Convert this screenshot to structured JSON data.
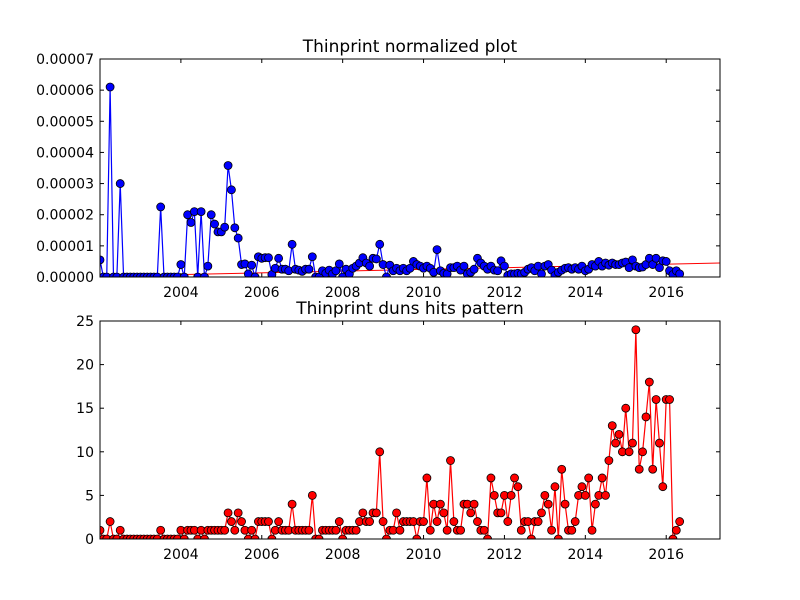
{
  "chart_data": [
    {
      "type": "line",
      "title": "Thinprint normalized plot",
      "xlabel": "",
      "ylabel": "",
      "xlim": [
        2002.0,
        2017.33
      ],
      "ylim": [
        0,
        7e-05
      ],
      "x_ticks": [
        2004,
        2006,
        2008,
        2010,
        2012,
        2014,
        2016
      ],
      "y_ticks": [
        0,
        1e-05,
        2e-05,
        3e-05,
        4e-05,
        5e-05,
        6e-05,
        7e-05
      ],
      "y_tick_labels": [
        "0.00000",
        "0.00001",
        "0.00002",
        "0.00003",
        "0.00004",
        "0.00005",
        "0.00006",
        "0.00007"
      ],
      "grid": false,
      "series": [
        {
          "color": "#0000ff",
          "marker": "circle",
          "x_start": 2002.0,
          "x_step": 0.08333,
          "values": [
            5.5e-06,
            0,
            0,
            6.1e-05,
            0,
            0,
            3e-05,
            0,
            0,
            0,
            0,
            0,
            0,
            0,
            0,
            0,
            0,
            0,
            2.25e-05,
            0,
            0,
            0,
            0,
            0,
            4e-06,
            0,
            2e-05,
            1.75e-05,
            2.1e-05,
            0,
            2.1e-05,
            0,
            3.5e-06,
            2e-05,
            1.7e-05,
            1.45e-05,
            1.45e-05,
            1.6e-05,
            3.58e-05,
            2.8e-05,
            1.58e-05,
            1.25e-05,
            4e-06,
            4.2e-06,
            1e-06,
            3.8e-06,
            0,
            6.5e-06,
            6e-06,
            6.2e-06,
            6.2e-06,
            8e-07,
            2.8e-06,
            6e-06,
            2.5e-06,
            2.5e-06,
            2e-06,
            1.05e-05,
            2.5e-06,
            2.2e-06,
            1.8e-06,
            2.5e-06,
            2.5e-06,
            6.5e-06,
            0,
            0,
            2e-06,
            1.2e-06,
            2.2e-06,
            1e-06,
            2e-06,
            4.2e-06,
            0,
            2.5e-06,
            1e-06,
            2.8e-06,
            3.5e-06,
            4.5e-06,
            6.2e-06,
            4.5e-06,
            3.5e-06,
            6e-06,
            5.8e-06,
            1.05e-05,
            4e-06,
            0,
            3.8e-06,
            2e-06,
            2.8e-06,
            2e-06,
            2.8e-06,
            2e-06,
            2.8e-06,
            5e-06,
            4e-06,
            3.5e-06,
            2.8e-06,
            3.5e-06,
            2.8e-06,
            1.5e-06,
            8.8e-06,
            2e-06,
            1.2e-06,
            1e-06,
            3e-06,
            3e-06,
            3.5e-06,
            2.2e-06,
            3.5e-06,
            1e-06,
            1.5e-06,
            2.5e-06,
            6e-06,
            4.5e-06,
            3.5e-06,
            2.5e-06,
            3.5e-06,
            2.2e-06,
            2e-06,
            5.2e-06,
            3.5e-06,
            5e-07,
            1e-06,
            1e-06,
            1.2e-06,
            1e-06,
            1.5e-06,
            2.5e-06,
            3e-06,
            2e-06,
            3.5e-06,
            1e-06,
            3.5e-06,
            4e-06,
            2.2e-06,
            5e-07,
            1.5e-06,
            2.2e-06,
            2.8e-06,
            3e-06,
            2.5e-06,
            3e-06,
            2.5e-06,
            3.5e-06,
            2e-06,
            2.5e-06,
            4e-06,
            3.5e-06,
            5e-06,
            3.5e-06,
            4.5e-06,
            3.8e-06,
            4.5e-06,
            4e-06,
            4e-06,
            4.5e-06,
            4.8e-06,
            3e-06,
            5.5e-06,
            3.5e-06,
            3e-06,
            3.2e-06,
            4e-06,
            6e-06,
            4e-06,
            6e-06,
            3e-06,
            5.2e-06,
            5e-06,
            2e-06,
            8e-07,
            2e-06,
            1e-06
          ]
        }
      ],
      "trend_line": {
        "color": "#ff0000",
        "y_start": 2e-07,
        "y_end": 4.5e-06
      }
    },
    {
      "type": "line",
      "title": "Thinprint duns hits pattern",
      "xlabel": "",
      "ylabel": "",
      "xlim": [
        2002.0,
        2017.33
      ],
      "ylim": [
        0,
        25
      ],
      "x_ticks": [
        2004,
        2006,
        2008,
        2010,
        2012,
        2014,
        2016
      ],
      "y_ticks": [
        0,
        5,
        10,
        15,
        20,
        25
      ],
      "y_tick_labels": [
        "0",
        "5",
        "10",
        "15",
        "20",
        "25"
      ],
      "grid": false,
      "series": [
        {
          "color": "#ff0000",
          "marker": "circle",
          "x_start": 2002.0,
          "x_step": 0.08333,
          "values": [
            1,
            0,
            0,
            2,
            0,
            0,
            1,
            0,
            0,
            0,
            0,
            0,
            0,
            0,
            0,
            0,
            0,
            0,
            1,
            0,
            0,
            0,
            0,
            0,
            1,
            0,
            1,
            1,
            1,
            0,
            1,
            0,
            1,
            1,
            1,
            1,
            1,
            1,
            3,
            2,
            1,
            3,
            2,
            1,
            0,
            1,
            0,
            2,
            2,
            2,
            2,
            0,
            1,
            2,
            1,
            1,
            1,
            4,
            1,
            1,
            1,
            1,
            1,
            5,
            0,
            0,
            1,
            1,
            1,
            1,
            1,
            2,
            0,
            1,
            1,
            1,
            1,
            2,
            3,
            2,
            2,
            3,
            3,
            10,
            2,
            0,
            1,
            1,
            3,
            1,
            2,
            2,
            2,
            2,
            0,
            2,
            2,
            7,
            1,
            4,
            2,
            4,
            3,
            1,
            9,
            2,
            1,
            1,
            4,
            4,
            3,
            4,
            2,
            1,
            1,
            0,
            7,
            5,
            3,
            3,
            5,
            2,
            5,
            7,
            6,
            1,
            2,
            2,
            0,
            2,
            2,
            3,
            5,
            4,
            1,
            6,
            0,
            8,
            4,
            1,
            1,
            2,
            5,
            6,
            5,
            7,
            1,
            4,
            5,
            7,
            5,
            9,
            13,
            11,
            12,
            10,
            15,
            10,
            11,
            24,
            8,
            10,
            14,
            18,
            8,
            16,
            11,
            6,
            16,
            16,
            0,
            1,
            2
          ]
        }
      ],
      "trend_line": {
        "color": "#ff0000",
        "y_start": 0.0,
        "y_end": 0.0
      }
    }
  ]
}
